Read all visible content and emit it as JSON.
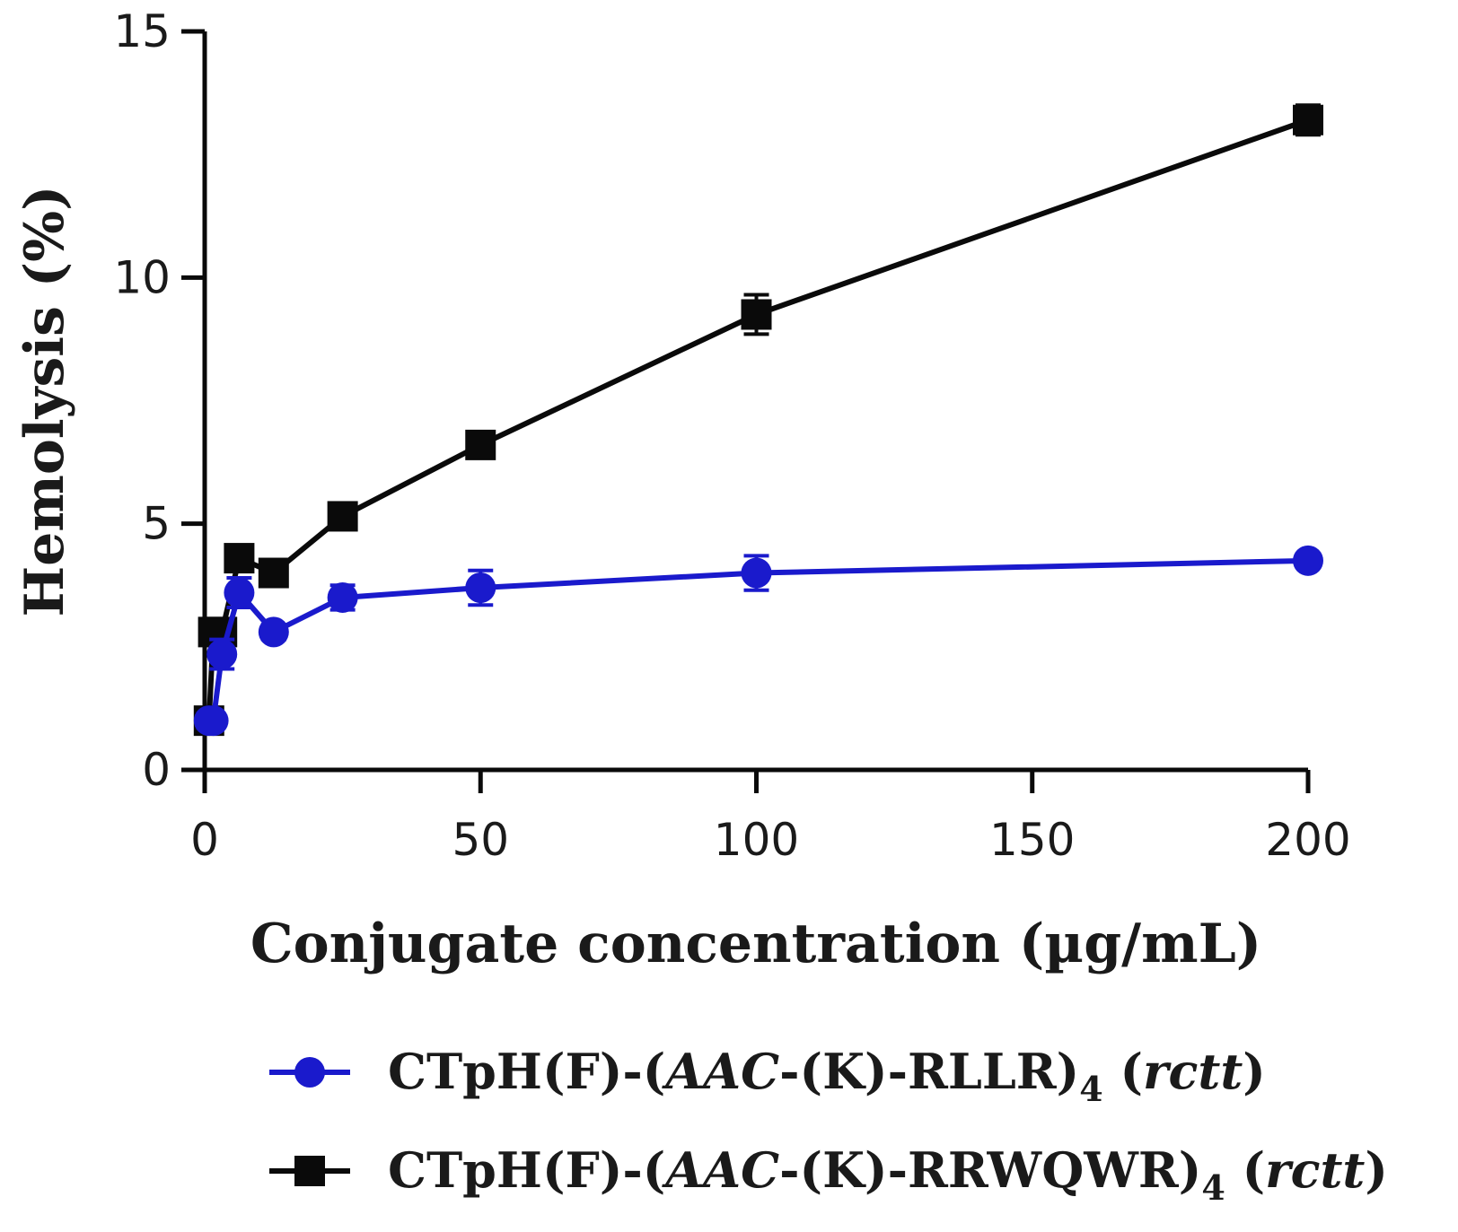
{
  "chart_data": {
    "type": "line",
    "title": "",
    "xlabel": "Conjugate concentration (µg/mL)",
    "ylabel": "Hemolysis (%)",
    "xlim": [
      0,
      200
    ],
    "ylim": [
      0,
      15
    ],
    "xticks": [
      0,
      50,
      100,
      150,
      200
    ],
    "yticks": [
      0,
      5,
      10,
      15
    ],
    "x": [
      0.78,
      1.56,
      3.125,
      6.25,
      12.5,
      25,
      50,
      100,
      200
    ],
    "series": [
      {
        "name": "CTpH(F)-(AAC-(K)-RLLR)4 (rctt)",
        "legend_parts": [
          "CTpH(F)-(",
          "AAC",
          "-(K)-RLLR)",
          "4",
          " (",
          "rctt",
          ")"
        ],
        "color": "#1a1acc",
        "marker": "circle",
        "values": [
          1.0,
          1.0,
          2.35,
          3.6,
          2.8,
          3.5,
          3.7,
          4.0,
          4.25
        ],
        "errors": [
          0.15,
          0.1,
          0.3,
          0.3,
          0.15,
          0.25,
          0.35,
          0.35,
          0.1
        ]
      },
      {
        "name": "CTpH(F)-(AAC-(K)-RRWQWR)4 (rctt)",
        "legend_parts": [
          "CTpH(F)-(",
          "AAC",
          "-(K)-RRWQWR)",
          "4",
          " (",
          "rctt",
          ")"
        ],
        "color": "#0a0a0a",
        "marker": "square",
        "values": [
          1.0,
          2.8,
          2.8,
          4.3,
          4.0,
          5.15,
          6.6,
          9.25,
          13.2
        ],
        "errors": [
          0.1,
          0.2,
          0.2,
          0.2,
          0.15,
          0.2,
          0.2,
          0.4,
          0.3
        ]
      }
    ],
    "legend_position": "bottom"
  }
}
